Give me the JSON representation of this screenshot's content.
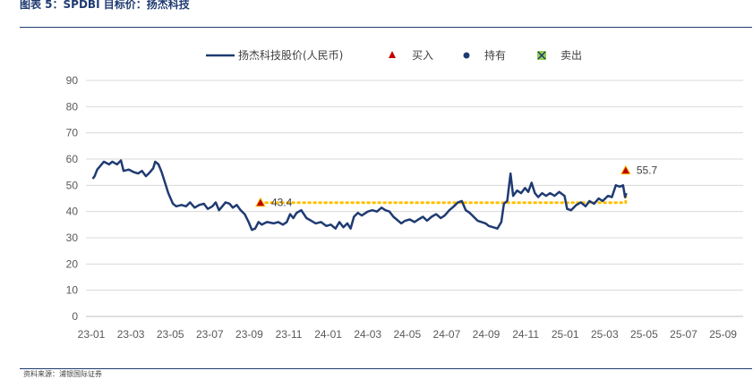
{
  "figure": {
    "title": "图表 5：SPDBI 目标价：扬杰科技",
    "source": "资料来源：浦银国际证券"
  },
  "chart_data": {
    "type": "line",
    "title": "",
    "xlabel": "",
    "ylabel": "",
    "ylim": [
      0,
      90
    ],
    "yticks": [
      0,
      10,
      20,
      30,
      40,
      50,
      60,
      70,
      80,
      90
    ],
    "xticks": [
      "23-01",
      "23-03",
      "23-05",
      "23-07",
      "23-09",
      "23-11",
      "24-01",
      "24-03",
      "24-05",
      "24-07",
      "24-09",
      "24-11",
      "25-01",
      "25-03",
      "25-05",
      "25-07",
      "25-09"
    ],
    "grid": true,
    "legend_position": "top-center",
    "colors": {
      "price": "#1f3b72",
      "buy": "#c00000",
      "buy_fill": "#ffc000",
      "target_line": "#ffc000",
      "hold": "#1f3b72",
      "sell": "#92d050"
    },
    "legend": [
      {
        "key": "price",
        "label": "扬杰科技股价(人民币)",
        "icon": "line"
      },
      {
        "key": "buy",
        "label": "买入",
        "icon": "triangle"
      },
      {
        "key": "hold",
        "label": "持有",
        "icon": "circle"
      },
      {
        "key": "sell",
        "label": "卖出",
        "icon": "x-square"
      }
    ],
    "series": [
      {
        "name": "扬杰科技股价(人民币)",
        "points": [
          [
            "23-01-03",
            52.5
          ],
          [
            "23-01-06",
            53.5
          ],
          [
            "23-01-10",
            56
          ],
          [
            "23-01-15",
            57.5
          ],
          [
            "23-01-20",
            59
          ],
          [
            "23-01-28",
            58
          ],
          [
            "23-02-03",
            59
          ],
          [
            "23-02-10",
            58
          ],
          [
            "23-02-16",
            59.5
          ],
          [
            "23-02-20",
            55.5
          ],
          [
            "23-02-28",
            56
          ],
          [
            "23-03-06",
            55
          ],
          [
            "23-03-12",
            54.5
          ],
          [
            "23-03-18",
            55.5
          ],
          [
            "23-03-24",
            53.5
          ],
          [
            "23-03-30",
            55
          ],
          [
            "23-04-05",
            56.5
          ],
          [
            "23-04-08",
            59
          ],
          [
            "23-04-13",
            58
          ],
          [
            "23-04-18",
            55
          ],
          [
            "23-04-23",
            51
          ],
          [
            "23-04-28",
            47
          ],
          [
            "23-05-05",
            43
          ],
          [
            "23-05-10",
            42
          ],
          [
            "23-05-18",
            42.5
          ],
          [
            "23-05-25",
            42
          ],
          [
            "23-06-01",
            43.5
          ],
          [
            "23-06-08",
            41.5
          ],
          [
            "23-06-15",
            42.5
          ],
          [
            "23-06-22",
            43
          ],
          [
            "23-06-28",
            41
          ],
          [
            "23-07-05",
            42
          ],
          [
            "23-07-10",
            43.5
          ],
          [
            "23-07-15",
            40.5
          ],
          [
            "23-07-20",
            42
          ],
          [
            "23-07-25",
            43.5
          ],
          [
            "23-07-31",
            43
          ],
          [
            "23-08-06",
            41.5
          ],
          [
            "23-08-12",
            42.5
          ],
          [
            "23-08-18",
            40.5
          ],
          [
            "23-08-24",
            39
          ],
          [
            "23-08-30",
            36
          ],
          [
            "23-09-05",
            33
          ],
          [
            "23-09-10",
            33.5
          ],
          [
            "23-09-15",
            36
          ],
          [
            "23-09-20",
            35
          ],
          [
            "23-09-28",
            36
          ],
          [
            "23-10-08",
            35.5
          ],
          [
            "23-10-15",
            36
          ],
          [
            "23-10-22",
            35
          ],
          [
            "23-10-28",
            36
          ],
          [
            "23-11-03",
            39
          ],
          [
            "23-11-08",
            37.5
          ],
          [
            "23-11-13",
            39.5
          ],
          [
            "23-11-20",
            40.5
          ],
          [
            "23-11-28",
            37.5
          ],
          [
            "23-12-05",
            36.5
          ],
          [
            "23-12-12",
            35.5
          ],
          [
            "23-12-20",
            36
          ],
          [
            "23-12-28",
            34.5
          ],
          [
            "24-01-05",
            35
          ],
          [
            "24-01-12",
            33.5
          ],
          [
            "24-01-18",
            36
          ],
          [
            "24-01-24",
            34
          ],
          [
            "24-01-30",
            35.5
          ],
          [
            "24-02-05",
            33.5
          ],
          [
            "24-02-10",
            38
          ],
          [
            "24-02-16",
            39.5
          ],
          [
            "24-02-22",
            38.5
          ],
          [
            "24-03-01",
            40
          ],
          [
            "24-03-08",
            40.5
          ],
          [
            "24-03-15",
            40
          ],
          [
            "24-03-22",
            41.5
          ],
          [
            "24-03-28",
            40.5
          ],
          [
            "24-04-04",
            40
          ],
          [
            "24-04-10",
            38
          ],
          [
            "24-04-15",
            37
          ],
          [
            "24-04-22",
            35.5
          ],
          [
            "24-04-28",
            36.5
          ],
          [
            "24-05-05",
            37
          ],
          [
            "24-05-12",
            36
          ],
          [
            "24-05-18",
            37
          ],
          [
            "24-05-25",
            38
          ],
          [
            "24-06-01",
            36.5
          ],
          [
            "24-06-08",
            38
          ],
          [
            "24-06-15",
            39
          ],
          [
            "24-06-22",
            37.5
          ],
          [
            "24-06-28",
            38.5
          ],
          [
            "24-07-05",
            40.5
          ],
          [
            "24-07-12",
            42
          ],
          [
            "24-07-18",
            43.5
          ],
          [
            "24-07-24",
            44
          ],
          [
            "24-07-30",
            40.5
          ],
          [
            "24-08-06",
            39.5
          ],
          [
            "24-08-12",
            38
          ],
          [
            "24-08-18",
            36.5
          ],
          [
            "24-08-24",
            36
          ],
          [
            "24-08-30",
            35.5
          ],
          [
            "24-09-05",
            34.5
          ],
          [
            "24-09-12",
            34
          ],
          [
            "24-09-18",
            33.5
          ],
          [
            "24-09-24",
            36
          ],
          [
            "24-09-28",
            43
          ],
          [
            "24-10-03",
            44
          ],
          [
            "24-10-08",
            54.5
          ],
          [
            "24-10-12",
            46
          ],
          [
            "24-10-18",
            48
          ],
          [
            "24-10-24",
            47
          ],
          [
            "24-10-30",
            49
          ],
          [
            "24-11-05",
            47.5
          ],
          [
            "24-11-10",
            51
          ],
          [
            "24-11-15",
            47
          ],
          [
            "24-11-20",
            45.5
          ],
          [
            "24-11-26",
            47
          ],
          [
            "24-12-02",
            46
          ],
          [
            "24-12-08",
            47
          ],
          [
            "24-12-15",
            46
          ],
          [
            "24-12-22",
            47.5
          ],
          [
            "24-12-30",
            46
          ],
          [
            "25-01-04",
            41
          ],
          [
            "25-01-10",
            40.5
          ],
          [
            "25-01-18",
            42.5
          ],
          [
            "25-01-25",
            43.5
          ],
          [
            "25-02-02",
            42
          ],
          [
            "25-02-08",
            44
          ],
          [
            "25-02-15",
            43
          ],
          [
            "25-02-22",
            45
          ],
          [
            "25-02-28",
            44
          ],
          [
            "25-03-06",
            46
          ],
          [
            "25-03-12",
            45.5
          ],
          [
            "25-03-18",
            50
          ],
          [
            "25-03-24",
            49.5
          ],
          [
            "25-03-29",
            50
          ],
          [
            "25-04-02",
            45.5
          ],
          [
            "25-04-04",
            47
          ]
        ]
      }
    ],
    "markers": [
      {
        "type": "buy",
        "date": "23-09-18",
        "value": 43.4,
        "label": "43.4"
      },
      {
        "type": "buy",
        "date": "25-04-03",
        "value": 55.7,
        "label": "55.7"
      }
    ],
    "target_line": {
      "from": "23-09-18",
      "to": "25-04-03",
      "value": 43.4,
      "end_drop_to": 47
    }
  }
}
